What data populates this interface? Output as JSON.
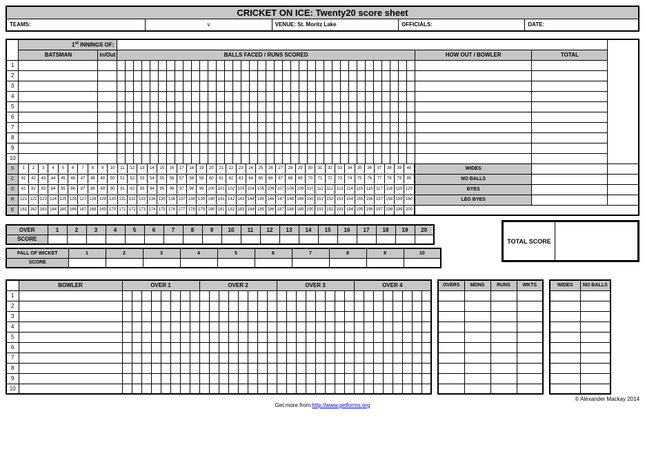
{
  "title": "CRICKET ON ICE: Twenty20 score sheet",
  "labels": {
    "teams": "TEAMS:",
    "v": "v",
    "venue": "VENUE:",
    "venue_val": "St. Moritz Lake",
    "officials": "OFFICIALS:",
    "date": "DATE:",
    "innings": "1",
    "innings_sup": "st",
    "innings_of": " INNINGS OF:",
    "batsman": "BATSMAN",
    "inout": "In/Out",
    "balls": "BALLS FACED / RUNS SCORED",
    "howout": "HOW OUT / BOWLER",
    "total": "TOTAL",
    "score_v": "SCORE",
    "wides": "WIDES",
    "noballs": "NO BALLS",
    "byes": "BYES",
    "legbyes": "LEG BYES",
    "over": "OVER",
    "score": "SCORE",
    "fow": "FALL OF WICKET",
    "total_score": "TOTAL SCORE",
    "bowler": "BOWLER",
    "over1": "OVER 1",
    "over2": "OVER 2",
    "over3": "OVER 3",
    "over4": "OVER 4",
    "overs": "OVERS",
    "mdns": "MDNS",
    "runs": "RUNS",
    "wkts": "WKTS",
    "copyright": "© Alexander Mackay 2014",
    "footer_pre": "Get more from ",
    "footer_url": "http://www.getforms.org"
  },
  "batsman_rows": 10,
  "balls_per_row": 36,
  "score_grid_cols": 40,
  "overs_count": 20,
  "wickets_count": 10,
  "bowler_rows": 10,
  "balls_per_over": 8,
  "extras": [
    "WIDES",
    "NO BALLS",
    "BYES",
    "LEG BYES"
  ],
  "stats_headers": [
    "OVERS",
    "MDNS",
    "RUNS",
    "WKTS"
  ],
  "stats_headers2": [
    "WIDES",
    "NO BALLS"
  ],
  "colors": {
    "grey": "#c7c7c7",
    "border": "#000000"
  }
}
